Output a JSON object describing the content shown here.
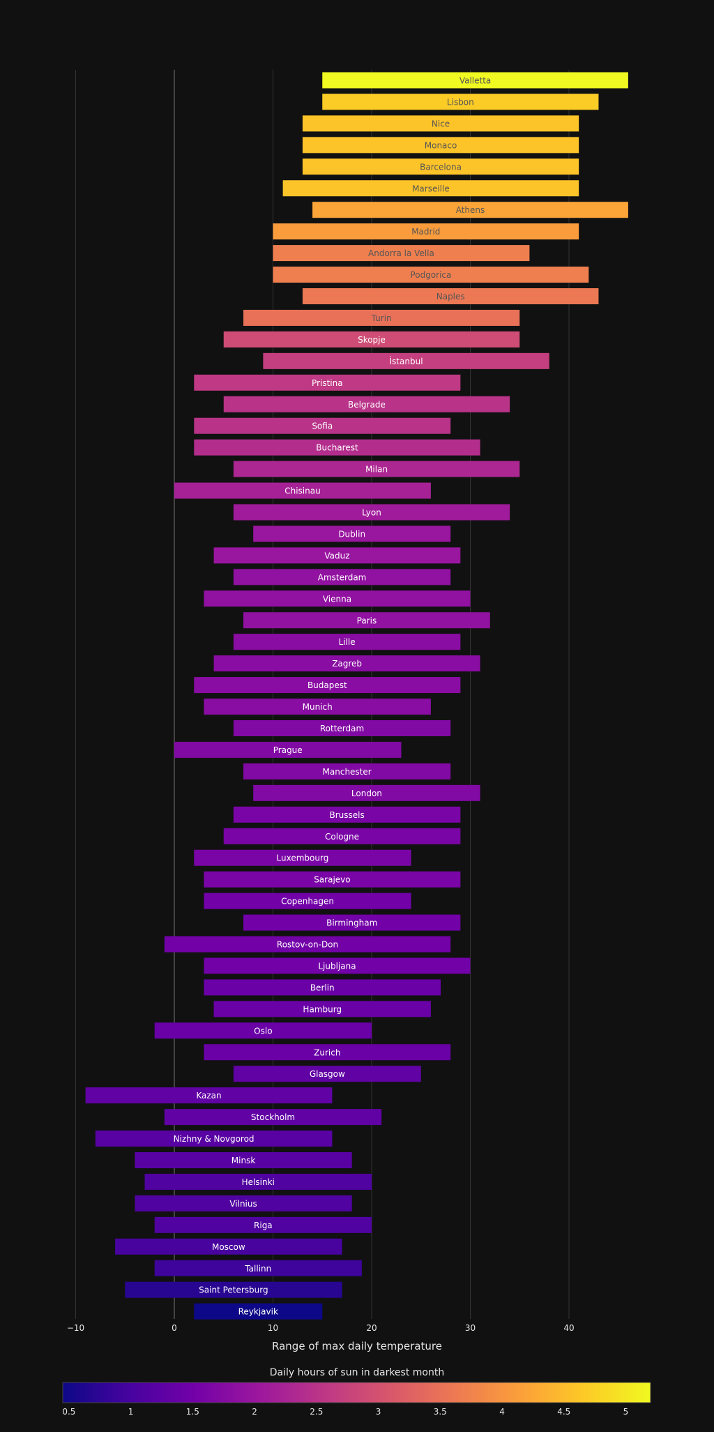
{
  "chart_data": {
    "type": "bar",
    "orientation": "horizontal-floating",
    "xlabel": "Range of max daily temperature",
    "xlim": [
      -10,
      48
    ],
    "xticks": [
      -10,
      0,
      10,
      20,
      30,
      40
    ],
    "xtick_labels": [
      "−10",
      "0",
      "10",
      "20",
      "30",
      "40"
    ],
    "grid": true,
    "colorbar": {
      "title": "Daily hours of sun in darkest month",
      "range": [
        0.45,
        5.2
      ],
      "ticks": [
        0.5,
        1,
        1.5,
        2,
        2.5,
        3,
        3.5,
        4,
        4.5,
        5
      ],
      "tick_labels": [
        "0.5",
        "1",
        "1.5",
        "2",
        "2.5",
        "3",
        "3.5",
        "4",
        "4.5",
        "5"
      ],
      "colorscale": [
        "#0d0887",
        "#46039f",
        "#7201a8",
        "#9c179e",
        "#bd3786",
        "#d8576b",
        "#ed7953",
        "#fb9f3a",
        "#fdca26",
        "#f0f921"
      ]
    },
    "bars": [
      {
        "city": "Valletta",
        "min": 15,
        "max": 46,
        "sun": 5.2
      },
      {
        "city": "Lisbon",
        "min": 15,
        "max": 43,
        "sun": 4.7
      },
      {
        "city": "Nice",
        "min": 13,
        "max": 41,
        "sun": 4.6
      },
      {
        "city": "Monaco",
        "min": 13,
        "max": 41,
        "sun": 4.6
      },
      {
        "city": "Barcelona",
        "min": 13,
        "max": 41,
        "sun": 4.6
      },
      {
        "city": "Marseille",
        "min": 11,
        "max": 41,
        "sun": 4.6
      },
      {
        "city": "Athens",
        "min": 14,
        "max": 46,
        "sun": 4.2
      },
      {
        "city": "Madrid",
        "min": 10,
        "max": 41,
        "sun": 4.1
      },
      {
        "city": "Andorra la Vella",
        "min": 10,
        "max": 36,
        "sun": 3.7
      },
      {
        "city": "Podgorica",
        "min": 10,
        "max": 42,
        "sun": 3.7
      },
      {
        "city": "Naples",
        "min": 13,
        "max": 43,
        "sun": 3.6
      },
      {
        "city": "Turin",
        "min": 7,
        "max": 35,
        "sun": 3.5
      },
      {
        "city": "Skopje",
        "min": 5,
        "max": 35,
        "sun": 2.9
      },
      {
        "city": "İstanbul",
        "min": 9,
        "max": 38,
        "sun": 2.7
      },
      {
        "city": "Pristina",
        "min": 2,
        "max": 29,
        "sun": 2.6
      },
      {
        "city": "Belgrade",
        "min": 5,
        "max": 34,
        "sun": 2.5
      },
      {
        "city": "Sofia",
        "min": 2,
        "max": 28,
        "sun": 2.5
      },
      {
        "city": "Bucharest",
        "min": 2,
        "max": 31,
        "sun": 2.4
      },
      {
        "city": "Milan",
        "min": 6,
        "max": 35,
        "sun": 2.3
      },
      {
        "city": "Chisinau",
        "min": 0,
        "max": 26,
        "sun": 2.2
      },
      {
        "city": "Lyon",
        "min": 6,
        "max": 34,
        "sun": 2.1
      },
      {
        "city": "Dublin",
        "min": 8,
        "max": 28,
        "sun": 2.0
      },
      {
        "city": "Vaduz",
        "min": 4,
        "max": 29,
        "sun": 2.0
      },
      {
        "city": "Amsterdam",
        "min": 6,
        "max": 28,
        "sun": 1.9
      },
      {
        "city": "Vienna",
        "min": 3,
        "max": 30,
        "sun": 1.9
      },
      {
        "city": "Paris",
        "min": 7,
        "max": 32,
        "sun": 1.9
      },
      {
        "city": "Lille",
        "min": 6,
        "max": 29,
        "sun": 1.8
      },
      {
        "city": "Zagreb",
        "min": 4,
        "max": 31,
        "sun": 1.8
      },
      {
        "city": "Budapest",
        "min": 2,
        "max": 29,
        "sun": 1.8
      },
      {
        "city": "Munich",
        "min": 3,
        "max": 26,
        "sun": 1.8
      },
      {
        "city": "Rotterdam",
        "min": 6,
        "max": 28,
        "sun": 1.7
      },
      {
        "city": "Prague",
        "min": 0,
        "max": 23,
        "sun": 1.7
      },
      {
        "city": "Manchester",
        "min": 7,
        "max": 28,
        "sun": 1.7
      },
      {
        "city": "London",
        "min": 8,
        "max": 31,
        "sun": 1.7
      },
      {
        "city": "Brussels",
        "min": 6,
        "max": 29,
        "sun": 1.6
      },
      {
        "city": "Cologne",
        "min": 5,
        "max": 29,
        "sun": 1.6
      },
      {
        "city": "Luxembourg",
        "min": 2,
        "max": 24,
        "sun": 1.6
      },
      {
        "city": "Sarajevo",
        "min": 3,
        "max": 29,
        "sun": 1.6
      },
      {
        "city": "Copenhagen",
        "min": 3,
        "max": 24,
        "sun": 1.5
      },
      {
        "city": "Birmingham",
        "min": 7,
        "max": 29,
        "sun": 1.5
      },
      {
        "city": "Rostov-on-Don",
        "min": -1,
        "max": 28,
        "sun": 1.5
      },
      {
        "city": "Ljubljana",
        "min": 3,
        "max": 30,
        "sun": 1.5
      },
      {
        "city": "Berlin",
        "min": 3,
        "max": 27,
        "sun": 1.4
      },
      {
        "city": "Hamburg",
        "min": 4,
        "max": 26,
        "sun": 1.4
      },
      {
        "city": "Oslo",
        "min": -2,
        "max": 20,
        "sun": 1.4
      },
      {
        "city": "Zurich",
        "min": 3,
        "max": 28,
        "sun": 1.4
      },
      {
        "city": "Glasgow",
        "min": 6,
        "max": 25,
        "sun": 1.3
      },
      {
        "city": "Kazan",
        "min": -9,
        "max": 16,
        "sun": 1.3
      },
      {
        "city": "Stockholm",
        "min": -1,
        "max": 21,
        "sun": 1.3
      },
      {
        "city": "Nizhny & Novgorod",
        "min": -8,
        "max": 16,
        "sun": 1.2
      },
      {
        "city": "Minsk",
        "min": -4,
        "max": 18,
        "sun": 1.2
      },
      {
        "city": "Helsinki",
        "min": -3,
        "max": 20,
        "sun": 1.1
      },
      {
        "city": "Vilnius",
        "min": -4,
        "max": 18,
        "sun": 1.1
      },
      {
        "city": "Riga",
        "min": -2,
        "max": 20,
        "sun": 1.1
      },
      {
        "city": "Moscow",
        "min": -6,
        "max": 17,
        "sun": 1.0
      },
      {
        "city": "Tallinn",
        "min": -2,
        "max": 19,
        "sun": 0.9
      },
      {
        "city": "Saint Petersburg",
        "min": -5,
        "max": 17,
        "sun": 0.7
      },
      {
        "city": "Reykjavik",
        "min": 2,
        "max": 15,
        "sun": 0.45
      }
    ]
  },
  "colors": {
    "background": "#111111",
    "grid": "#333333",
    "zero_line": "#444444",
    "text": "#e6e6e6"
  }
}
